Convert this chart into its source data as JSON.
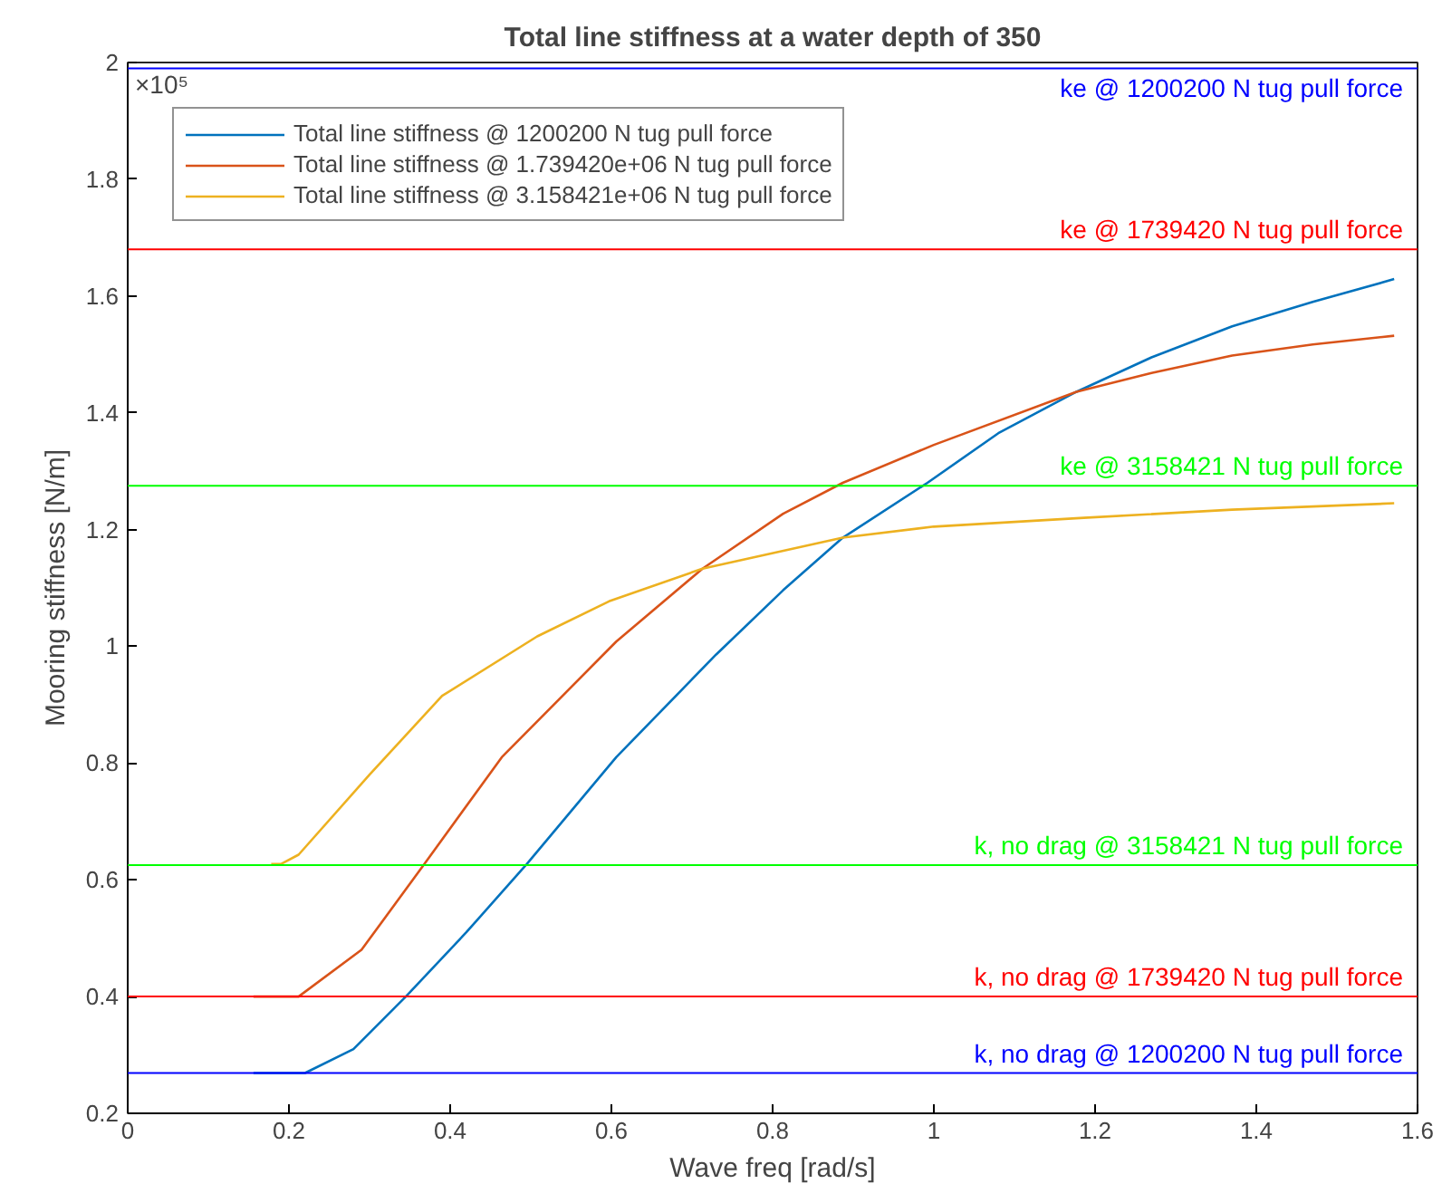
{
  "chart_data": {
    "type": "line",
    "title": "Total line stiffness at a water depth of 350",
    "xlabel": "Wave freq [rad/s]",
    "ylabel": "Mooring stiffness [N/m]",
    "annotations": [
      "×10⁵"
    ],
    "xlim": [
      0,
      1.6
    ],
    "xticks": [
      0,
      0.2,
      0.4,
      0.6,
      0.8,
      1,
      1.2,
      1.4,
      1.6
    ],
    "ylim": [
      0.2,
      2
    ],
    "yticks": [
      0.2,
      0.4,
      0.6,
      0.8,
      1,
      1.2,
      1.4,
      1.6,
      1.8,
      2
    ],
    "grid": false,
    "legend": "top left",
    "marker": "none",
    "line_style": "solid",
    "series": [
      {
        "name": "Total line stiffness @ 1200200 N tug pull force",
        "color": "#0072bd",
        "x": [
          0.156,
          0.22,
          0.28,
          0.345,
          0.42,
          0.495,
          0.606,
          0.73,
          0.813,
          0.887,
          0.992,
          1.08,
          1.177,
          1.27,
          1.37,
          1.47,
          1.571
        ],
        "values": [
          0.269,
          0.269,
          0.31,
          0.4,
          0.51,
          0.627,
          0.81,
          0.986,
          1.096,
          1.186,
          1.28,
          1.365,
          1.436,
          1.495,
          1.548,
          1.59,
          1.629
        ]
      },
      {
        "name": "Total line stiffness @ 1.739420e+06 N tug pull force",
        "color": "#d95319",
        "x": [
          0.156,
          0.212,
          0.29,
          0.368,
          0.464,
          0.606,
          0.713,
          0.813,
          0.887,
          1.0,
          1.177,
          1.27,
          1.37,
          1.47,
          1.571
        ],
        "values": [
          0.4,
          0.4,
          0.48,
          0.627,
          0.81,
          1.008,
          1.133,
          1.227,
          1.28,
          1.345,
          1.436,
          1.468,
          1.498,
          1.517,
          1.532
        ]
      },
      {
        "name": "Total line stiffness @ 3.158421e+06 N tug pull force",
        "color": "#edb120",
        "x": [
          0.178,
          0.19,
          0.212,
          0.3,
          0.39,
          0.508,
          0.597,
          0.713,
          0.887,
          1.0,
          1.186,
          1.37,
          1.571
        ],
        "values": [
          0.627,
          0.627,
          0.643,
          0.78,
          0.915,
          1.017,
          1.077,
          1.133,
          1.186,
          1.205,
          1.22,
          1.234,
          1.245
        ]
      }
    ],
    "ref_lines": [
      {
        "axis": "y",
        "value": 1.99,
        "label": "ke @ 1200200 N tug pull force",
        "color": "#0000ff"
      },
      {
        "axis": "y",
        "value": 1.68,
        "label": "ke @ 1739420 N tug pull force",
        "color": "#ff0000"
      },
      {
        "axis": "y",
        "value": 1.275,
        "label": "ke @ 3158421 N tug pull force",
        "color": "#00ff00"
      },
      {
        "axis": "y",
        "value": 0.625,
        "label": "k, no drag @ 3158421 N tug pull force",
        "color": "#00ff00"
      },
      {
        "axis": "y",
        "value": 0.4,
        "label": "k, no drag @ 1739420 N tug pull force",
        "color": "#ff0000"
      },
      {
        "axis": "y",
        "value": 0.269,
        "label": "k, no drag @ 1200200 N tug pull force",
        "color": "#0000ff"
      }
    ]
  }
}
